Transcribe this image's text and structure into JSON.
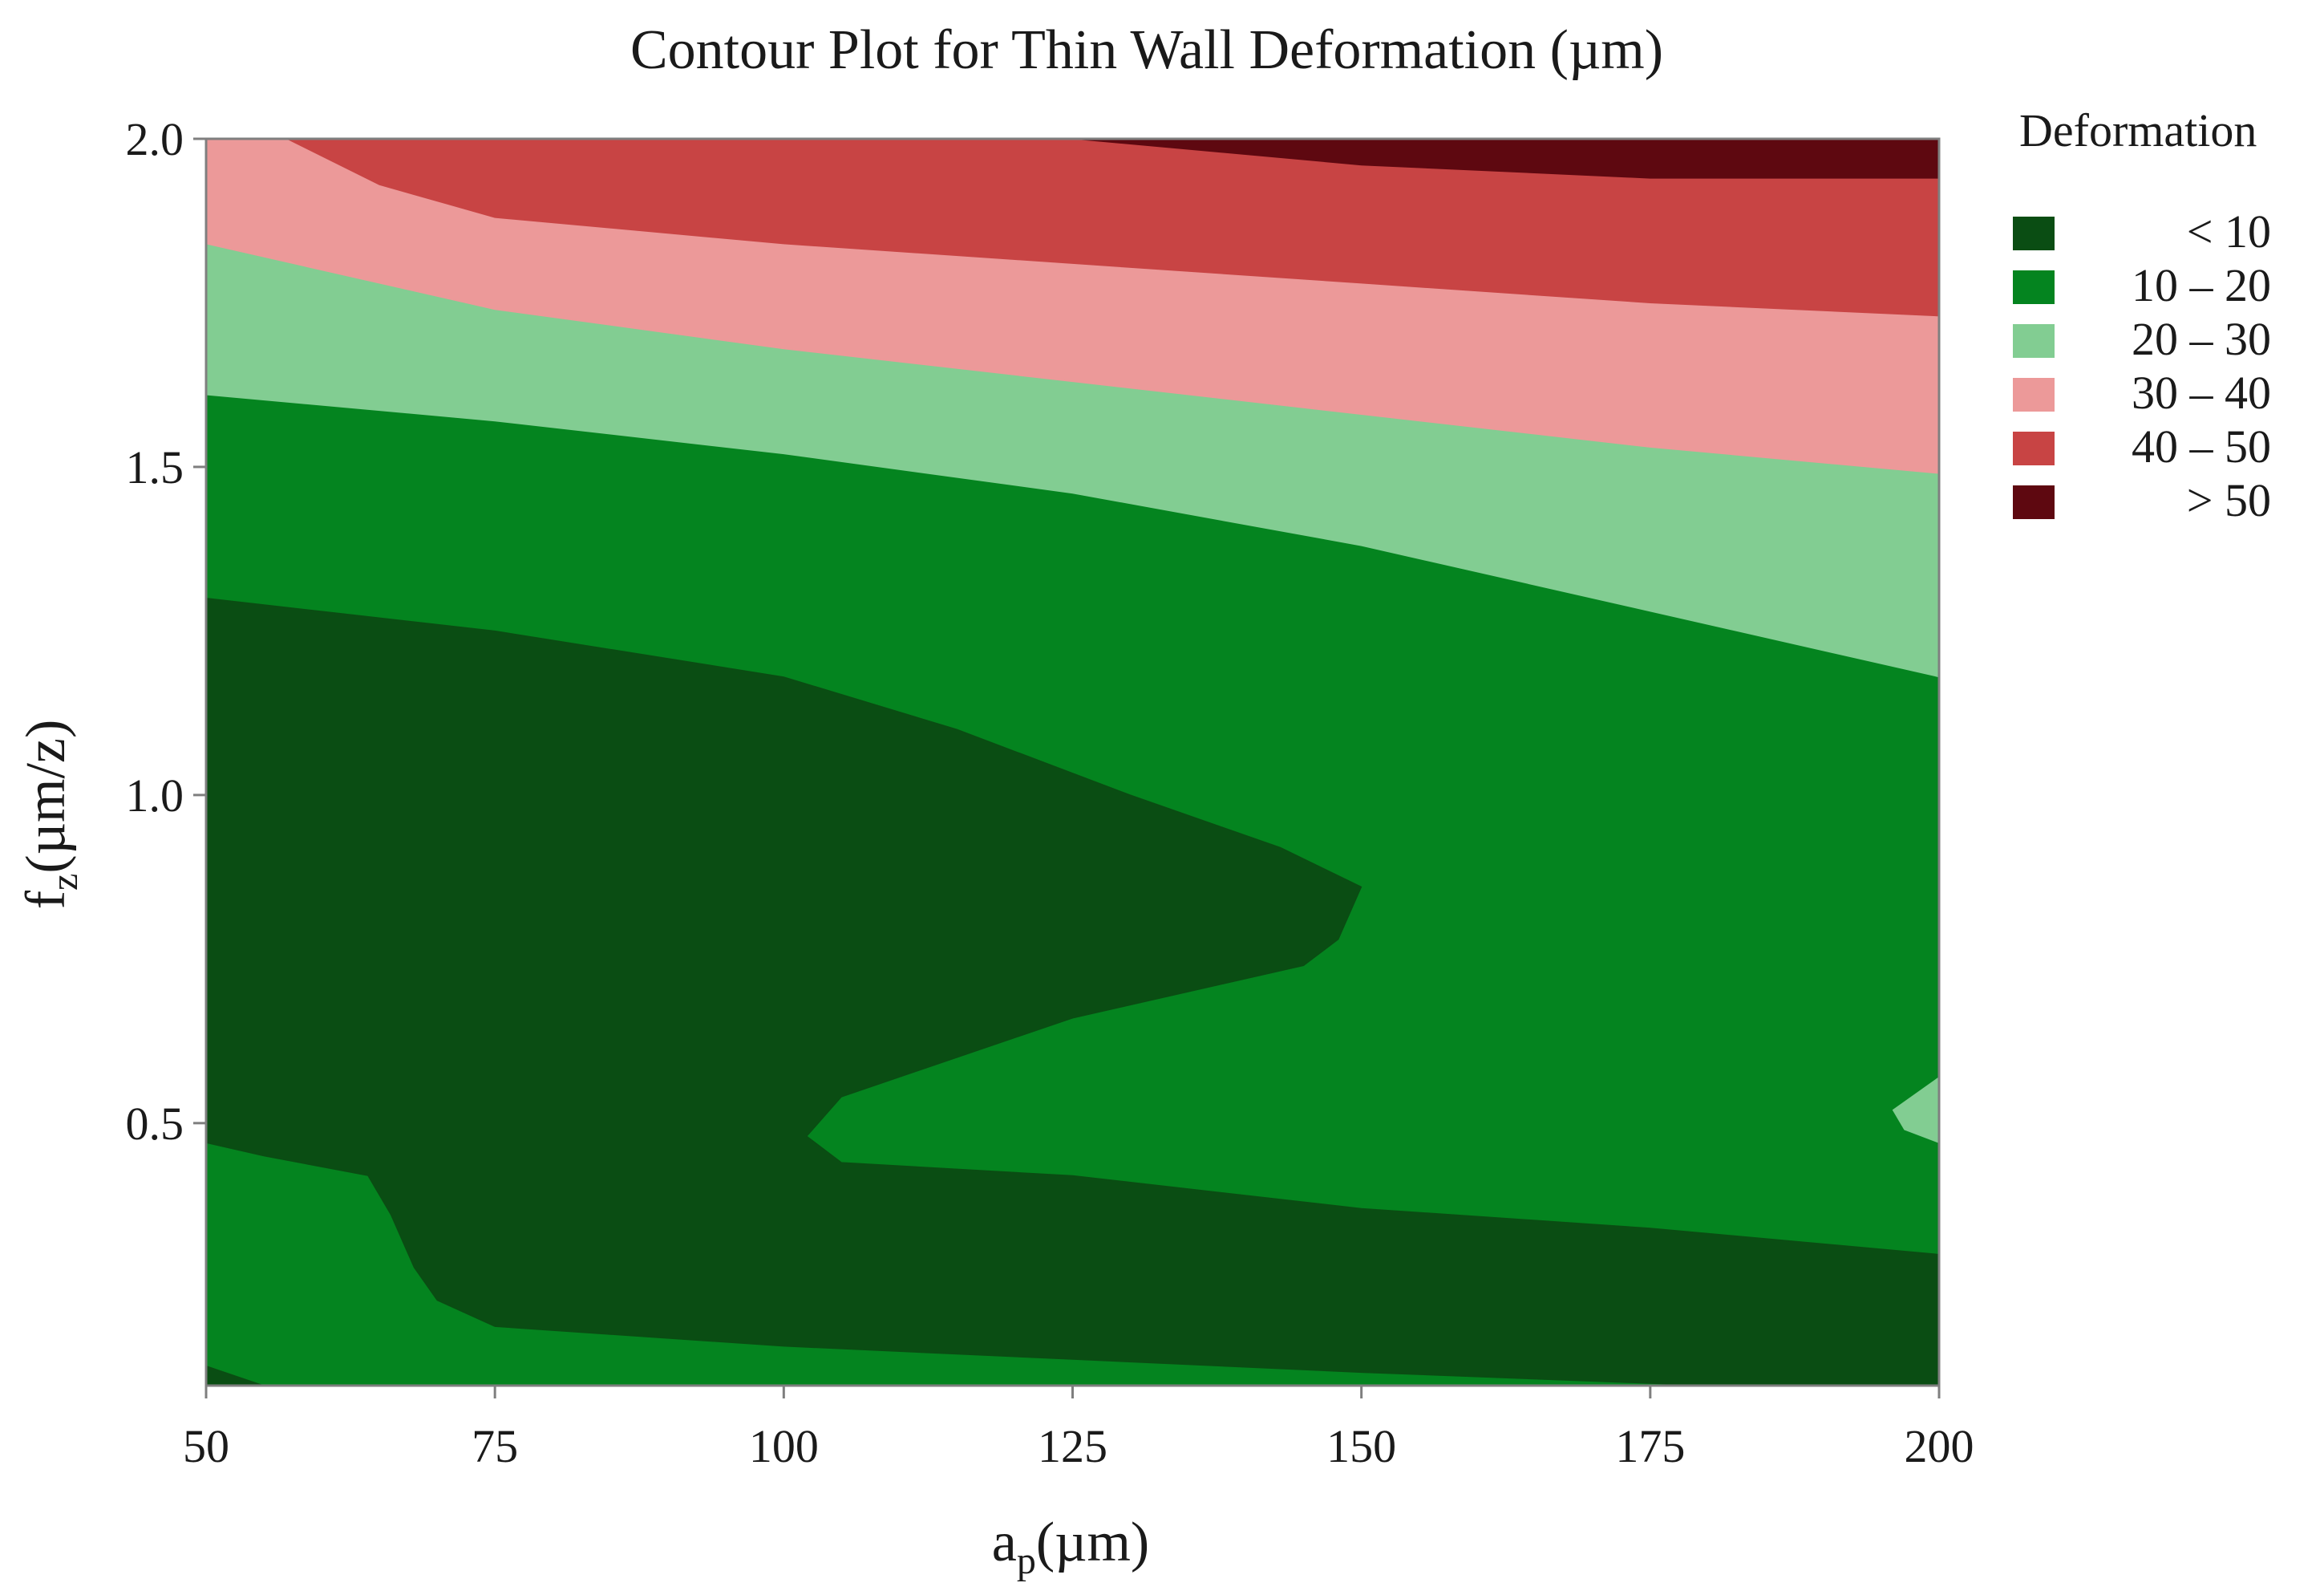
{
  "chart_data": {
    "type": "contour",
    "title": "Contour Plot for Thin Wall Deformation (µm)",
    "xlabel": {
      "main": "a",
      "sub": "p",
      "unit": "(µm)"
    },
    "ylabel": {
      "main": "f",
      "sub": "z",
      "unit": "(µm/z)"
    },
    "xlim": [
      50,
      200
    ],
    "ylim": [
      0.1,
      2.0
    ],
    "x_ticks": [
      "50",
      "75",
      "100",
      "125",
      "150",
      "175",
      "200"
    ],
    "y_ticks": [
      "0.5",
      "1.0",
      "1.5",
      "2.0"
    ],
    "x_tick_values": [
      50,
      75,
      100,
      125,
      150,
      175,
      200
    ],
    "y_tick_values": [
      0.5,
      1.0,
      1.5,
      2.0
    ],
    "legend": {
      "title": "Deformation",
      "position": "right",
      "entries": [
        {
          "label": "< 10",
          "color": "#0a4d13"
        },
        {
          "label": "10 – 20",
          "color": "#04841f"
        },
        {
          "label": "20 – 30",
          "color": "#82cd92"
        },
        {
          "label": "30 – 40",
          "color": "#ec9999"
        },
        {
          "label": "40 – 50",
          "color": "#c84444"
        },
        {
          "label": "> 50",
          "color": "#5e0810"
        }
      ]
    },
    "regions": [
      {
        "level": "10 – 20",
        "color": "#04841f",
        "points": [
          [
            50,
            0.1
          ],
          [
            200,
            0.1
          ],
          [
            200,
            2.0
          ],
          [
            50,
            2.0
          ]
        ]
      },
      {
        "level": "20 – 30",
        "color": "#82cd92",
        "points": [
          [
            50,
            2.0
          ],
          [
            200,
            2.0
          ],
          [
            200,
            1.18
          ],
          [
            175,
            1.28
          ],
          [
            150,
            1.38
          ],
          [
            125,
            1.46
          ],
          [
            100,
            1.52
          ],
          [
            75,
            1.57
          ],
          [
            50,
            1.61
          ]
        ]
      },
      {
        "level": "30 – 40",
        "color": "#ec9999",
        "points": [
          [
            50,
            2.0
          ],
          [
            200,
            2.0
          ],
          [
            200,
            1.49
          ],
          [
            175,
            1.53
          ],
          [
            150,
            1.58
          ],
          [
            125,
            1.63
          ],
          [
            100,
            1.68
          ],
          [
            75,
            1.74
          ],
          [
            50,
            1.84
          ]
        ]
      },
      {
        "level": "40 – 50",
        "color": "#c84444",
        "points": [
          [
            57,
            2.0
          ],
          [
            200,
            2.0
          ],
          [
            200,
            1.73
          ],
          [
            175,
            1.75
          ],
          [
            150,
            1.78
          ],
          [
            125,
            1.81
          ],
          [
            100,
            1.84
          ],
          [
            75,
            1.88
          ],
          [
            65,
            1.93
          ]
        ]
      },
      {
        "level": "> 50",
        "color": "#5e0810",
        "points": [
          [
            125,
            2.0
          ],
          [
            200,
            2.0
          ],
          [
            200,
            1.94
          ],
          [
            175,
            1.94
          ],
          [
            150,
            1.96
          ]
        ]
      },
      {
        "level": "< 10",
        "color": "#0a4d13",
        "points": [
          [
            50,
            1.3
          ],
          [
            75,
            1.25
          ],
          [
            100,
            1.18
          ],
          [
            115,
            1.1
          ],
          [
            130,
            1.0
          ],
          [
            143,
            0.92
          ],
          [
            150,
            0.86
          ],
          [
            148,
            0.78
          ],
          [
            145,
            0.74
          ],
          [
            125,
            0.66
          ],
          [
            105,
            0.54
          ],
          [
            102,
            0.48
          ],
          [
            105,
            0.44
          ],
          [
            125,
            0.42
          ],
          [
            150,
            0.37
          ],
          [
            175,
            0.34
          ],
          [
            200,
            0.3
          ],
          [
            200,
            0.1
          ],
          [
            180,
            0.1
          ],
          [
            150,
            0.12
          ],
          [
            125,
            0.14
          ],
          [
            100,
            0.16
          ],
          [
            75,
            0.19
          ],
          [
            70,
            0.23
          ],
          [
            68,
            0.28
          ],
          [
            66,
            0.36
          ],
          [
            64,
            0.42
          ],
          [
            55,
            0.45
          ],
          [
            50,
            0.47
          ]
        ]
      },
      {
        "level": "< 10",
        "color": "#0a4d13",
        "points": [
          [
            50,
            0.13
          ],
          [
            55,
            0.1
          ],
          [
            50,
            0.1
          ]
        ]
      },
      {
        "level": "20 – 30",
        "color": "#82cd92",
        "points": [
          [
            200,
            0.57
          ],
          [
            196,
            0.52
          ],
          [
            197,
            0.49
          ],
          [
            200,
            0.47
          ]
        ]
      }
    ]
  }
}
